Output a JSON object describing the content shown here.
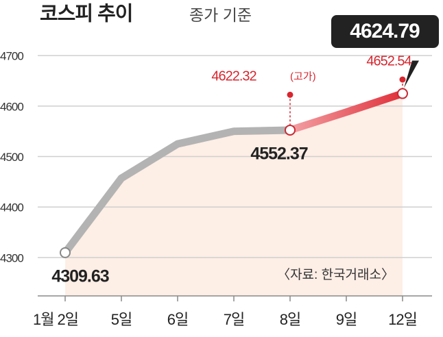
{
  "chart_data": {
    "type": "line",
    "title": "코스피 추이",
    "subtitle": "종가 기준",
    "categories": [
      "1월 2일",
      "5일",
      "6일",
      "7일",
      "8일",
      "9일",
      "12일"
    ],
    "series": [
      {
        "color": "#b3b3b3",
        "values": [
          4309.63,
          4457,
          4525,
          4550,
          4552.37,
          null,
          null
        ]
      },
      {
        "color": "#e0303a",
        "values": [
          null,
          null,
          null,
          null,
          4552.37,
          4588,
          4624.79
        ]
      }
    ],
    "value_labels": [
      "4309.63",
      null,
      null,
      null,
      "4552.37",
      null,
      "4624.79"
    ],
    "highs": [
      null,
      null,
      null,
      null,
      4622.32,
      null,
      4652.54
    ],
    "high_note": "(고가)",
    "high_color": "#d7262f",
    "area_color": "#fdeee6",
    "ylim": [
      4224,
      4730
    ],
    "yticks": [
      4300,
      4400,
      4500,
      4600,
      4700
    ],
    "grid": true,
    "source": "〈자료: 한국거래소〉"
  }
}
